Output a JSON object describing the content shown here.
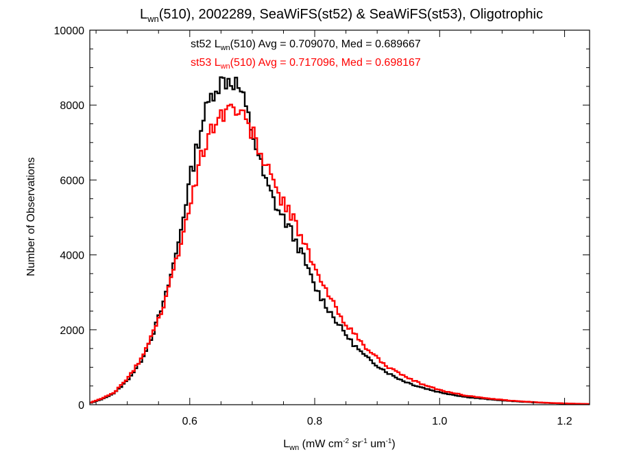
{
  "chart_data": {
    "type": "histogram-step",
    "title": {
      "var": "L",
      "sub": "wn",
      "rest": "(510), 2002289, SeaWiFS(st52) & SeaWiFS(st53), Oligotrophic"
    },
    "ylabel": "Number of Observations",
    "xlabel": {
      "var": "L",
      "sub": "wn",
      "p1": " (mW cm",
      "s1": "-2",
      "p2": " sr",
      "s2": "-1",
      "p3": " um",
      "s3": "-1",
      "p4": ")"
    },
    "xlim": [
      0.44,
      1.24
    ],
    "ylim": [
      0,
      10000
    ],
    "xticks": [
      {
        "value": 0.6,
        "label": "0.6"
      },
      {
        "value": 0.8,
        "label": "0.8"
      },
      {
        "value": 1.0,
        "label": "1.0"
      },
      {
        "value": 1.2,
        "label": "1.2"
      }
    ],
    "yticks": [
      {
        "value": 0,
        "label": "0"
      },
      {
        "value": 2000,
        "label": "2000"
      },
      {
        "value": 4000,
        "label": "4000"
      },
      {
        "value": 6000,
        "label": "6000"
      },
      {
        "value": 8000,
        "label": "8000"
      },
      {
        "value": 10000,
        "label": "10000"
      }
    ],
    "series": [
      {
        "name": "st52",
        "color": "#000000",
        "stat_parts": {
          "pre": "st52 L",
          "sub": "wn",
          "post": "(510) Avg = 0.709070, Med = 0.689667"
        },
        "x": [
          0.44,
          0.46,
          0.48,
          0.5,
          0.52,
          0.54,
          0.56,
          0.58,
          0.6,
          0.62,
          0.64,
          0.66,
          0.67,
          0.68,
          0.7,
          0.72,
          0.74,
          0.76,
          0.78,
          0.8,
          0.82,
          0.84,
          0.86,
          0.88,
          0.9,
          0.92,
          0.94,
          0.96,
          0.98,
          1.0,
          1.04,
          1.08,
          1.12,
          1.16,
          1.2,
          1.24
        ],
        "values": [
          40,
          150,
          320,
          650,
          1100,
          1850,
          2800,
          4150,
          6000,
          7550,
          8500,
          8700,
          8650,
          8450,
          7300,
          6000,
          5250,
          4700,
          4000,
          3150,
          2600,
          2100,
          1650,
          1300,
          1050,
          820,
          650,
          520,
          420,
          330,
          210,
          140,
          90,
          55,
          30,
          15
        ]
      },
      {
        "name": "st53",
        "color": "#ff0000",
        "stat_parts": {
          "pre": "st53 L",
          "sub": "wn",
          "post": "(510) Avg = 0.717096, Med = 0.698167"
        },
        "x": [
          0.44,
          0.46,
          0.48,
          0.5,
          0.52,
          0.54,
          0.56,
          0.58,
          0.6,
          0.62,
          0.64,
          0.66,
          0.67,
          0.68,
          0.7,
          0.72,
          0.74,
          0.76,
          0.78,
          0.8,
          0.82,
          0.84,
          0.86,
          0.88,
          0.9,
          0.92,
          0.94,
          0.96,
          0.98,
          1.0,
          1.04,
          1.08,
          1.12,
          1.16,
          1.2,
          1.24
        ],
        "values": [
          50,
          170,
          340,
          690,
          1160,
          1900,
          2700,
          3950,
          5300,
          6700,
          7600,
          7900,
          7950,
          7800,
          7300,
          6450,
          5700,
          5100,
          4500,
          3600,
          3000,
          2400,
          1950,
          1550,
          1250,
          980,
          780,
          630,
          500,
          390,
          250,
          160,
          100,
          60,
          35,
          18
        ]
      }
    ]
  }
}
